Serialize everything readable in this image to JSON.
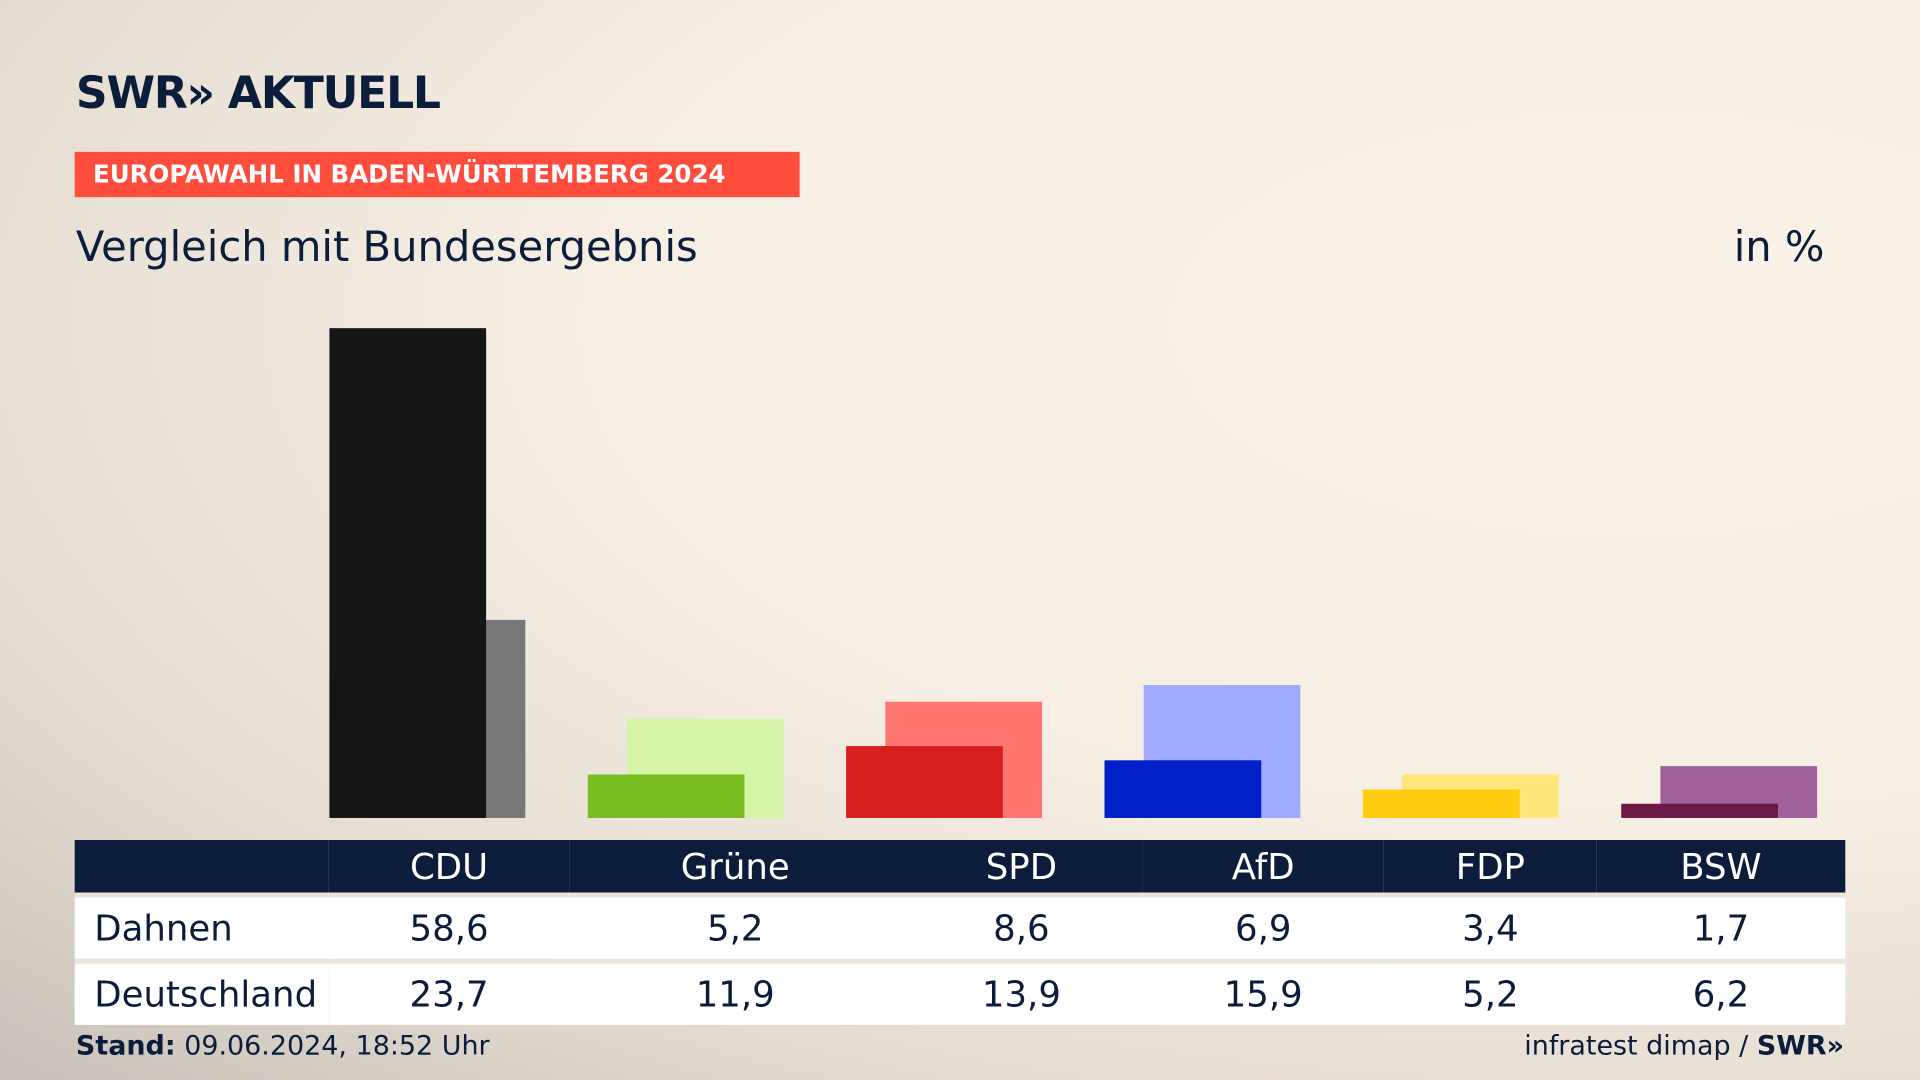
{
  "brand": "SWR» AKTUELL",
  "kicker": "EUROPAWAHL IN BADEN-WÜRTTEMBERG 2024",
  "title": "Vergleich mit Bundesergebnis",
  "unit": "in %",
  "row_labels": [
    "Dahnen",
    "Deutschland"
  ],
  "footer": {
    "stand_label": "Stand:",
    "stand_value": "09.06.2024, 18:52 Uhr",
    "source": "infratest dimap / ",
    "source_brand": "SWR»"
  },
  "chart_data": {
    "type": "bar",
    "title": "Vergleich mit Bundesergebnis",
    "ylabel": "in %",
    "categories": [
      "CDU",
      "Grüne",
      "SPD",
      "AfD",
      "FDP",
      "BSW"
    ],
    "series": [
      {
        "name": "Dahnen",
        "values": [
          "58,6",
          "5,2",
          "8,6",
          "6,9",
          "3,4",
          "1,7"
        ],
        "colors": [
          "#151515",
          "#78be20",
          "#d71f1f",
          "#0020c8",
          "#ffcc10",
          "#6b1a45"
        ]
      },
      {
        "name": "Deutschland",
        "values": [
          "23,7",
          "11,9",
          "13,9",
          "15,9",
          "5,2",
          "6,2"
        ],
        "colors": [
          "#777777",
          "#d7f5a8",
          "#ff7570",
          "#9daaff",
          "#ffe57a",
          "#a0609a"
        ]
      }
    ]
  }
}
